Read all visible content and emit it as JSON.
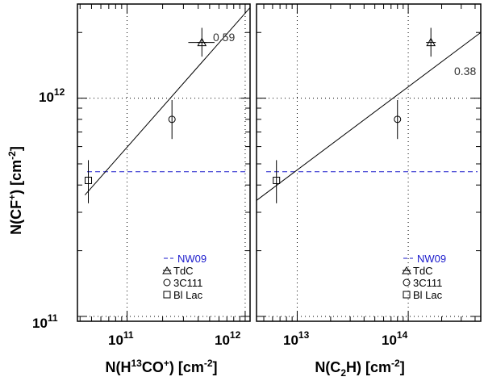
{
  "y_axis_label": {
    "main": "N(CF",
    "sup1": "+",
    "mid": ") [cm",
    "sup2": "-2",
    "end": "]"
  },
  "y_ticks": [
    {
      "base": "10",
      "exp": "12",
      "value": 1000000000000.0
    },
    {
      "base": "10",
      "exp": "11",
      "value": 100000000000.0
    }
  ],
  "legend": {
    "nw09": "NW09",
    "tdc": "TdC",
    "c3c111": "3C111",
    "bllac": "Bl Lac"
  },
  "chart_data": [
    {
      "type": "scatter",
      "xlabel": {
        "main": "N(H",
        "sup1": "13",
        "mid": "CO",
        "sup2": "+",
        "mid2": ") [cm",
        "sup3": "-2",
        "end": "]"
      },
      "xscale": "log",
      "yscale": "log",
      "xlim": [
        38000000000.0,
        1100000000000.0
      ],
      "ylim": [
        95000000000.0,
        2700000000000.0
      ],
      "x_ticks": [
        {
          "base": "10",
          "exp": "11",
          "value": 100000000000.0
        },
        {
          "base": "10",
          "exp": "12",
          "value": 1000000000000.0
        }
      ],
      "grid": true,
      "points": [
        {
          "source": "Bl Lac",
          "marker": "square",
          "x": 47000000000.0,
          "y": 420000000000.0,
          "yerr": [
            330000000000.0,
            520000000000.0
          ]
        },
        {
          "source": "3C111",
          "marker": "circle",
          "x": 240000000000.0,
          "y": 800000000000.0,
          "yerr": [
            650000000000.0,
            980000000000.0
          ]
        },
        {
          "source": "TdC",
          "marker": "triangle",
          "x": 430000000000.0,
          "y": 1800000000000.0,
          "xerr": [
            330000000000.0,
            550000000000.0
          ],
          "yerr": [
            1550000000000.0,
            2100000000000.0
          ]
        }
      ],
      "fit": {
        "x": [
          44000000000.0,
          1100000000000.0
        ],
        "y": [
          360000000000.0,
          2600000000000.0
        ],
        "label": "0.59"
      },
      "reference_line": {
        "name": "NW09",
        "y": 460000000000.0,
        "style": "dashed",
        "color": "#1a1acc"
      }
    },
    {
      "type": "scatter",
      "xlabel": {
        "main": "N(C",
        "sub": "2",
        "mid": "H) [cm",
        "sup": "-2",
        "end": "]"
      },
      "xscale": "log",
      "yscale": "log",
      "xlim": [
        4300000000000.0,
        450000000000000.0
      ],
      "ylim": [
        95000000000.0,
        2700000000000.0
      ],
      "x_ticks": [
        {
          "base": "10",
          "exp": "13",
          "value": 10000000000000.0
        },
        {
          "base": "10",
          "exp": "14",
          "value": 100000000000000.0
        }
      ],
      "grid": true,
      "points": [
        {
          "source": "Bl Lac",
          "marker": "square",
          "x": 6500000000000.0,
          "y": 420000000000.0,
          "yerr": [
            330000000000.0,
            520000000000.0
          ]
        },
        {
          "source": "3C111",
          "marker": "circle",
          "x": 80000000000000.0,
          "y": 800000000000.0,
          "yerr": [
            650000000000.0,
            980000000000.0
          ]
        },
        {
          "source": "TdC",
          "marker": "triangle",
          "x": 160000000000000.0,
          "y": 1800000000000.0,
          "yerr": [
            1550000000000.0,
            2100000000000.0
          ]
        }
      ],
      "fit": {
        "x": [
          4300000000000.0,
          450000000000000.0
        ],
        "y": [
          340000000000.0,
          2000000000000.0
        ],
        "label": "0.38"
      },
      "reference_line": {
        "name": "NW09",
        "y": 460000000000.0,
        "style": "dashed",
        "color": "#1a1acc"
      }
    }
  ]
}
